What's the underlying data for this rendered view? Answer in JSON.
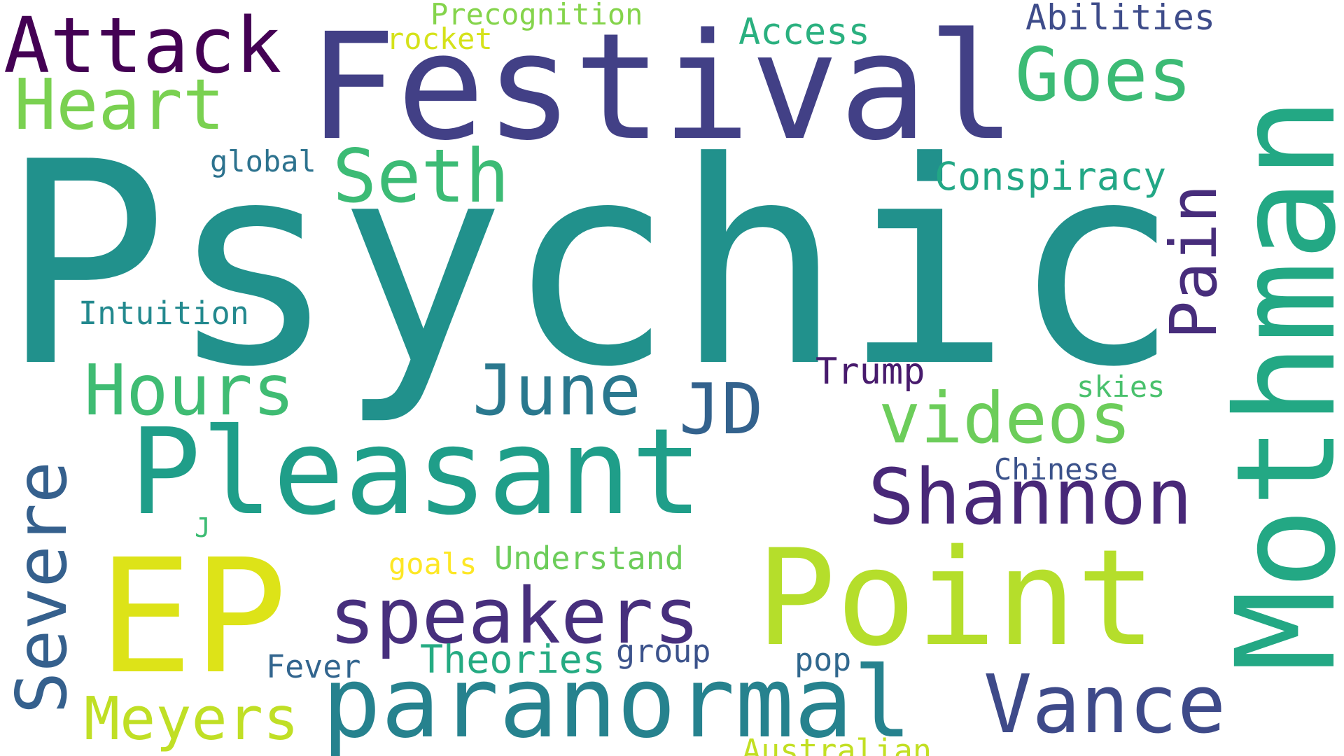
{
  "words": {
    "psychic": {
      "text": "Psychic",
      "color": "#21918c"
    },
    "festival": {
      "text": "Festival",
      "color": "#424086"
    },
    "mothman": {
      "text": "Mothman",
      "color": "#23a884"
    },
    "pleasant": {
      "text": "Pleasant",
      "color": "#1f9e89"
    },
    "point": {
      "text": "Point",
      "color": "#b5de2b"
    },
    "ep": {
      "text": "EP",
      "color": "#dde318"
    },
    "paranormal": {
      "text": "paranormal",
      "color": "#26828e"
    },
    "attack": {
      "text": "Attack",
      "color": "#440154"
    },
    "goes": {
      "text": "Goes",
      "color": "#3cbb75"
    },
    "heart": {
      "text": "Heart",
      "color": "#7ad151"
    },
    "seth": {
      "text": "Seth",
      "color": "#3cbb75"
    },
    "hours": {
      "text": "Hours",
      "color": "#3fbc73"
    },
    "june": {
      "text": "June",
      "color": "#2a788e"
    },
    "jd": {
      "text": "JD",
      "color": "#33628d"
    },
    "videos": {
      "text": "videos",
      "color": "#6ccd5a"
    },
    "shannon": {
      "text": "Shannon",
      "color": "#482878"
    },
    "speakers": {
      "text": "speakers",
      "color": "#472f7d"
    },
    "vance": {
      "text": "Vance",
      "color": "#3e4a89"
    },
    "severe": {
      "text": "Severe",
      "color": "#35608d"
    },
    "pain": {
      "text": "Pain",
      "color": "#472d7b"
    },
    "meyers": {
      "text": "Meyers",
      "color": "#c0df25"
    },
    "conspiracy": {
      "text": "Conspiracy",
      "color": "#22a785"
    },
    "theories": {
      "text": "Theories",
      "color": "#25ab82"
    },
    "trump": {
      "text": "Trump",
      "color": "#481b6d"
    },
    "access": {
      "text": "Access",
      "color": "#2ab07f"
    },
    "abilities": {
      "text": "Abilities",
      "color": "#3e4c8a"
    },
    "precognition": {
      "text": "Precognition",
      "color": "#84d44b"
    },
    "rocket": {
      "text": "rocket",
      "color": "#d5e21a"
    },
    "global": {
      "text": "global",
      "color": "#2c728e"
    },
    "intuition": {
      "text": "Intuition",
      "color": "#23898e"
    },
    "skies": {
      "text": "skies",
      "color": "#4ac16d"
    },
    "chinese": {
      "text": "Chinese",
      "color": "#3b528b"
    },
    "j": {
      "text": "J",
      "color": "#3dbc74"
    },
    "goals": {
      "text": "goals",
      "color": "#fde725"
    },
    "understand": {
      "text": "Understand",
      "color": "#6ccd5a"
    },
    "fever": {
      "text": "Fever",
      "color": "#32658e"
    },
    "group": {
      "text": "group",
      "color": "#3b528b"
    },
    "pop": {
      "text": "pop",
      "color": "#31688e"
    },
    "australian": {
      "text": "Australian",
      "color": "#c2df23"
    }
  }
}
